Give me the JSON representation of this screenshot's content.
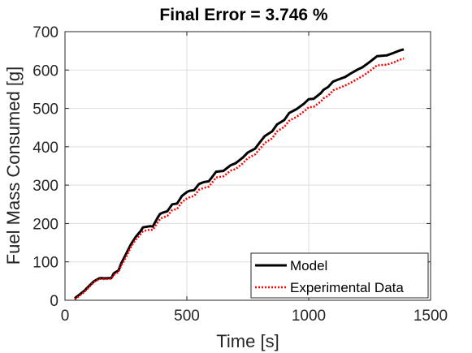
{
  "chart_data": {
    "type": "line",
    "title": "Final Error = 3.746 %",
    "xlabel": "Time [s]",
    "ylabel": "Fuel Mass Consumed [g]",
    "xlim": [
      0,
      1500
    ],
    "ylim": [
      0,
      700
    ],
    "xticks": [
      0,
      500,
      1000,
      1500
    ],
    "yticks": [
      0,
      100,
      200,
      300,
      400,
      500,
      600,
      700
    ],
    "grid": true,
    "legend_position": "bottom-right",
    "series": [
      {
        "name": "Model",
        "color": "#000000",
        "style": "solid",
        "x": [
          40,
          60,
          80,
          100,
          120,
          140,
          150,
          160,
          190,
          200,
          220,
          230,
          250,
          270,
          290,
          310,
          320,
          340,
          350,
          360,
          380,
          390,
          400,
          420,
          440,
          460,
          480,
          500,
          510,
          530,
          550,
          570,
          590,
          600,
          620,
          650,
          680,
          700,
          730,
          750,
          780,
          800,
          820,
          850,
          870,
          900,
          920,
          950,
          980,
          1000,
          1020,
          1050,
          1060,
          1080,
          1100,
          1120,
          1150,
          1170,
          1200,
          1220,
          1250,
          1280,
          1300,
          1320,
          1350,
          1370,
          1380,
          1390
        ],
        "y": [
          5,
          15,
          25,
          38,
          50,
          57,
          58,
          57,
          58,
          70,
          78,
          95,
          120,
          145,
          165,
          180,
          190,
          192,
          193,
          192,
          215,
          225,
          228,
          232,
          250,
          252,
          272,
          282,
          285,
          287,
          303,
          308,
          310,
          318,
          335,
          337,
          352,
          357,
          372,
          385,
          395,
          412,
          428,
          440,
          458,
          470,
          488,
          498,
          512,
          524,
          525,
          540,
          548,
          556,
          570,
          575,
          582,
          590,
          601,
          607,
          621,
          636,
          637,
          638,
          645,
          650,
          652,
          654
        ]
      },
      {
        "name": "Experimental Data",
        "color": "#ff0000",
        "style": "dotted",
        "x": [
          40,
          60,
          80,
          100,
          120,
          140,
          150,
          160,
          190,
          200,
          220,
          230,
          250,
          270,
          290,
          310,
          320,
          340,
          350,
          360,
          380,
          390,
          400,
          420,
          440,
          460,
          480,
          500,
          510,
          530,
          550,
          570,
          590,
          600,
          620,
          650,
          680,
          700,
          730,
          750,
          780,
          800,
          820,
          850,
          870,
          900,
          920,
          950,
          980,
          1000,
          1020,
          1050,
          1060,
          1080,
          1100,
          1120,
          1150,
          1170,
          1200,
          1220,
          1250,
          1280,
          1300,
          1320,
          1350,
          1370,
          1380,
          1390
        ],
        "y": [
          2,
          12,
          22,
          35,
          48,
          55,
          56,
          55,
          56,
          66,
          74,
          90,
          112,
          138,
          158,
          172,
          180,
          183,
          184,
          183,
          203,
          212,
          215,
          220,
          235,
          238,
          256,
          265,
          268,
          272,
          288,
          293,
          296,
          304,
          320,
          323,
          338,
          342,
          357,
          370,
          380,
          395,
          410,
          422,
          440,
          452,
          468,
          478,
          492,
          503,
          504,
          518,
          526,
          533,
          547,
          552,
          560,
          566,
          577,
          584,
          597,
          612,
          613,
          614,
          620,
          626,
          628,
          630
        ]
      }
    ]
  }
}
